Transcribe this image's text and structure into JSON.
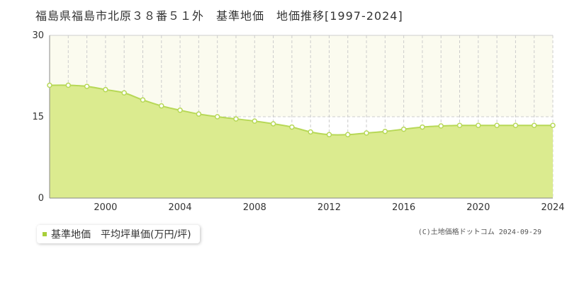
{
  "title": "福島県福島市北原３８番５１外　基準地価　地価推移[1997-2024]",
  "legend": {
    "label": "基準地価　平均坪単価(万円/坪)",
    "color": "#a8cf3a"
  },
  "credit": "(C)土地価格ドットコム 2024-09-29",
  "colors": {
    "fill": "#dbeb8f",
    "line": "#b7d857",
    "grid": "#cccccc",
    "band": "#fbfbef"
  },
  "chart_data": {
    "type": "area",
    "title": "",
    "xlabel": "",
    "ylabel": "",
    "xlim": [
      1997,
      2024
    ],
    "ylim": [
      0,
      30
    ],
    "y_ticks": [
      0,
      15,
      30
    ],
    "x_tick_labels": [
      2000,
      2004,
      2008,
      2012,
      2016,
      2020,
      2024
    ],
    "x": [
      1997,
      1998,
      1999,
      2000,
      2001,
      2002,
      2003,
      2004,
      2005,
      2006,
      2007,
      2008,
      2009,
      2010,
      2011,
      2012,
      2013,
      2014,
      2015,
      2016,
      2017,
      2018,
      2019,
      2020,
      2021,
      2022,
      2023,
      2024
    ],
    "series": [
      {
        "name": "基準地価　平均坪単価(万円/坪)",
        "values": [
          20.8,
          20.8,
          20.6,
          20.0,
          19.4,
          18.1,
          17.0,
          16.2,
          15.5,
          15.0,
          14.6,
          14.2,
          13.7,
          13.1,
          12.2,
          11.7,
          11.7,
          12.0,
          12.3,
          12.7,
          13.1,
          13.3,
          13.4,
          13.4,
          13.4,
          13.4,
          13.4,
          13.4
        ]
      }
    ],
    "grid": true,
    "legend_position": "bottom-left"
  }
}
